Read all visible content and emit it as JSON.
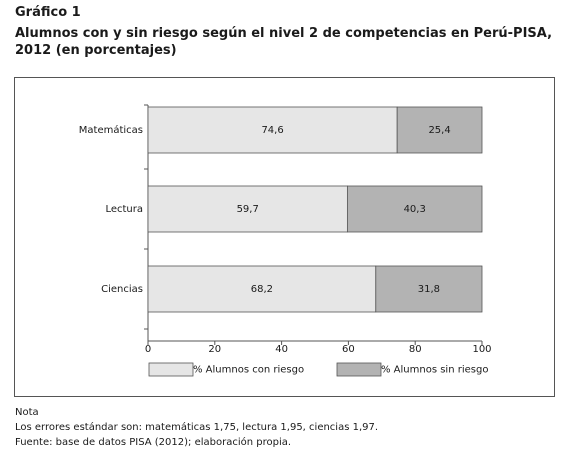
{
  "figure": {
    "label": "Gráfico 1",
    "title": "Alumnos con y sin riesgo según el nivel 2 de competencias en Perú-PISA, 2012 (en porcentajes)"
  },
  "chart_data": {
    "type": "bar",
    "orientation": "horizontal",
    "stacked": true,
    "categories": [
      "Matemáticas",
      "Lectura",
      "Ciencias"
    ],
    "series": [
      {
        "name": "% Alumnos con riesgo",
        "values": [
          74.6,
          59.7,
          68.2
        ],
        "labels": [
          "74,6",
          "59,7",
          "68,2"
        ],
        "color": "#e6e6e6"
      },
      {
        "name": "% Alumnos sin riesgo",
        "values": [
          25.4,
          40.3,
          31.8
        ],
        "labels": [
          "25,4",
          "40,3",
          "31,8"
        ],
        "color": "#b3b3b3"
      }
    ],
    "xlim": [
      0,
      100
    ],
    "xticks": [
      0,
      20,
      40,
      60,
      80,
      100
    ],
    "grid": false,
    "legend_position": "bottom"
  },
  "notes": {
    "heading": "Nota",
    "errors": "Los errores estándar son: matemáticas 1,75, lectura 1,95, ciencias 1,97.",
    "source": "Fuente: base de datos PISA (2012); elaboración propia."
  }
}
